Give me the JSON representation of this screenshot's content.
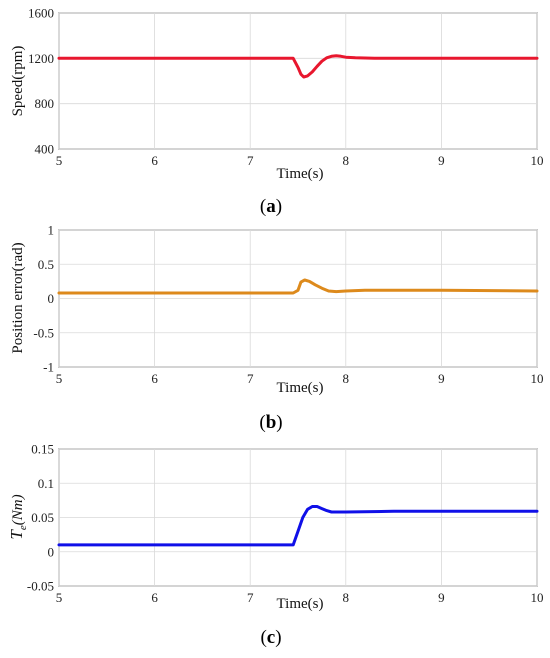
{
  "chart_data": [
    {
      "type": "line",
      "panel_label": "a",
      "xlabel": "Time(s)",
      "ylabel": "Speed(rpm)",
      "xlim": [
        5,
        10
      ],
      "ylim": [
        400,
        1600
      ],
      "xticks": [
        "5",
        "6",
        "7",
        "8",
        "9",
        "10"
      ],
      "yticks": [
        "400",
        "800",
        "1200",
        "1600"
      ],
      "grid": true,
      "color": "#e8172e",
      "series": [
        {
          "x": [
            5,
            6,
            7,
            7.45,
            7.5,
            7.53,
            7.56,
            7.6,
            7.65,
            7.7,
            7.75,
            7.8,
            7.85,
            7.9,
            7.95,
            8.0,
            8.1,
            8.3,
            9,
            10
          ],
          "y": [
            1200,
            1200,
            1200,
            1200,
            1120,
            1060,
            1035,
            1045,
            1080,
            1130,
            1175,
            1205,
            1218,
            1222,
            1218,
            1210,
            1205,
            1200,
            1200,
            1200
          ]
        }
      ]
    },
    {
      "type": "line",
      "panel_label": "b",
      "xlabel": "Time(s)",
      "ylabel": "Position error(rad)",
      "xlim": [
        5,
        10
      ],
      "ylim": [
        -1,
        1
      ],
      "xticks": [
        "5",
        "6",
        "7",
        "8",
        "9",
        "10"
      ],
      "yticks": [
        "-1",
        "-0.5",
        "0",
        "0.5",
        "1"
      ],
      "grid": true,
      "color": "#dd8a1c",
      "series": [
        {
          "x": [
            5,
            6,
            7,
            7.45,
            7.5,
            7.53,
            7.57,
            7.62,
            7.68,
            7.75,
            7.82,
            7.9,
            8.0,
            8.2,
            9,
            10
          ],
          "y": [
            0.08,
            0.08,
            0.08,
            0.08,
            0.12,
            0.24,
            0.27,
            0.25,
            0.2,
            0.15,
            0.11,
            0.1,
            0.11,
            0.12,
            0.12,
            0.11
          ]
        }
      ]
    },
    {
      "type": "line",
      "panel_label": "c",
      "xlabel": "Time(s)",
      "ylabel": "T_e(Nm)",
      "xlim": [
        5,
        10
      ],
      "ylim": [
        -0.05,
        0.15
      ],
      "xticks": [
        "5",
        "6",
        "7",
        "8",
        "9",
        "10"
      ],
      "yticks": [
        "-0.05",
        "0",
        "0.05",
        "0.1",
        "0.15"
      ],
      "grid": true,
      "color": "#1010e8",
      "series": [
        {
          "x": [
            5,
            6,
            7,
            7.45,
            7.5,
            7.55,
            7.6,
            7.65,
            7.7,
            7.75,
            7.8,
            7.85,
            7.9,
            8.0,
            8.5,
            9,
            10
          ],
          "y": [
            0.01,
            0.01,
            0.01,
            0.01,
            0.03,
            0.05,
            0.062,
            0.066,
            0.066,
            0.063,
            0.06,
            0.058,
            0.058,
            0.058,
            0.059,
            0.059,
            0.059
          ]
        }
      ]
    }
  ]
}
